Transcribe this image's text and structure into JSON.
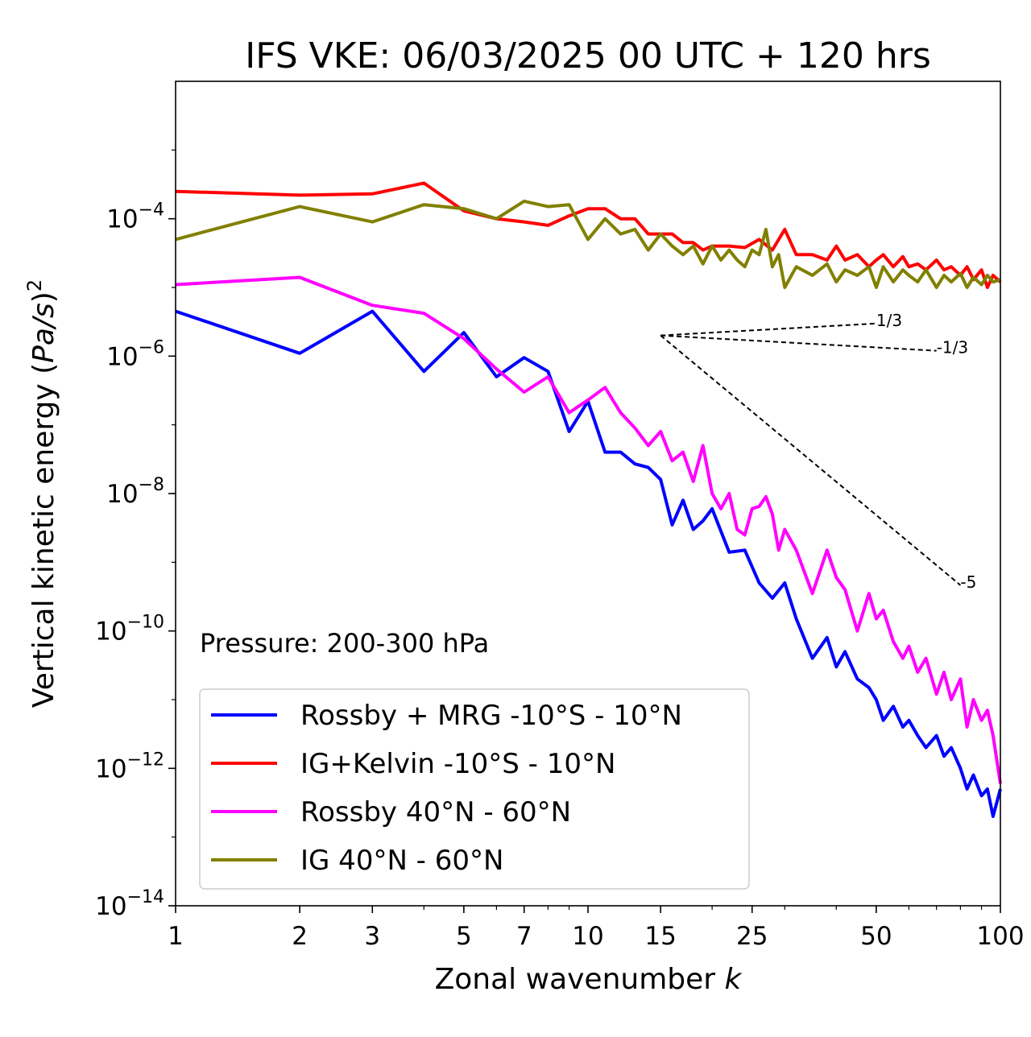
{
  "chart_data": {
    "type": "line",
    "title": "IFS VKE: 06/03/2025 00 UTC + 120 hrs",
    "xlabel": "Zonal wavenumber k",
    "xlabel_text": "Zonal wavenumber",
    "xlabel_var": "k",
    "ylabel": "Vertical kinetic energy (Pa/s)^2",
    "ylabel_text": "Vertical kinetic energy (",
    "ylabel_var": "Pa/s",
    "ylabel_close": ")",
    "ylabel_exp": "2",
    "xscale": "log",
    "yscale": "log",
    "xlim": [
      1,
      100
    ],
    "ylim": [
      1e-14,
      0.01
    ],
    "xticks": [
      1,
      2,
      3,
      5,
      7,
      10,
      15,
      25,
      50,
      100
    ],
    "xtick_labels": [
      "1",
      "2",
      "3",
      "5",
      "7",
      "10",
      "15",
      "25",
      "50",
      "100"
    ],
    "yticks": [
      -14,
      -12,
      -10,
      -8,
      -6,
      -4
    ],
    "ytick_base": "10",
    "ytick_exponents": [
      "−14",
      "−12",
      "−10",
      "−8",
      "−6",
      "−4"
    ],
    "grid": false,
    "legend_position": "lower-left",
    "annotation_text": "Pressure: 200-300 hPa",
    "slope_refs": [
      {
        "label": "1/3",
        "slope": 0.333,
        "x0": 15,
        "x1": 50,
        "y0": 2e-06
      },
      {
        "label": "-1/3",
        "slope": -0.333,
        "x0": 15,
        "x1": 70,
        "y0": 2e-06
      },
      {
        "label": "-5",
        "slope": -5,
        "x0": 15,
        "x1": 80,
        "y0": 2e-06
      }
    ],
    "series": [
      {
        "name": "Rossby + MRG -10°S - 10°N",
        "color": "#0000ff",
        "x": [
          1,
          2,
          3,
          4,
          5,
          6,
          7,
          8,
          9,
          10,
          11,
          12,
          13,
          14,
          15,
          16,
          17,
          18,
          19,
          20,
          22,
          24,
          26,
          28,
          30,
          32,
          35,
          38,
          40,
          42,
          45,
          48,
          50,
          52,
          55,
          58,
          60,
          63,
          66,
          70,
          73,
          76,
          80,
          83,
          86,
          90,
          93,
          96,
          100
        ],
        "y": [
          4.5e-06,
          1.1e-06,
          4.5e-06,
          6e-07,
          2.2e-06,
          5e-07,
          9.5e-07,
          6e-07,
          8e-08,
          2.2e-07,
          4e-08,
          4e-08,
          2.7e-08,
          2.4e-08,
          1.6e-08,
          3.5e-09,
          8e-09,
          3e-09,
          4e-09,
          6e-09,
          1.4e-09,
          1.5e-09,
          5e-10,
          3e-10,
          5e-10,
          1.5e-10,
          4e-11,
          8e-11,
          3e-11,
          5e-11,
          2e-11,
          1.5e-11,
          1e-11,
          5e-12,
          8e-12,
          4e-12,
          5e-12,
          3e-12,
          2e-12,
          3e-12,
          1.5e-12,
          2e-12,
          1e-12,
          5e-13,
          8e-13,
          4e-13,
          5e-13,
          2e-13,
          5e-13
        ]
      },
      {
        "name": "IG+Kelvin -10°S - 10°N",
        "color": "#ff0000",
        "x": [
          1,
          2,
          3,
          4,
          5,
          6,
          7,
          8,
          9,
          10,
          11,
          12,
          13,
          14,
          15,
          16,
          17,
          18,
          19,
          20,
          22,
          24,
          26,
          28,
          30,
          32,
          35,
          38,
          40,
          42,
          45,
          48,
          50,
          52,
          55,
          58,
          60,
          63,
          66,
          70,
          73,
          76,
          80,
          83,
          86,
          90,
          93,
          96,
          100
        ],
        "y": [
          0.00025,
          0.00022,
          0.00023,
          0.00033,
          0.00013,
          0.0001,
          9e-05,
          8e-05,
          0.00011,
          0.00014,
          0.00014,
          0.0001,
          0.0001,
          6e-05,
          6e-05,
          6e-05,
          4.5e-05,
          4.5e-05,
          3.5e-05,
          4e-05,
          4e-05,
          3.8e-05,
          5e-05,
          3.5e-05,
          7e-05,
          3e-05,
          3e-05,
          2.5e-05,
          4e-05,
          2.5e-05,
          3e-05,
          2e-05,
          2.5e-05,
          3e-05,
          2e-05,
          2.8e-05,
          2e-05,
          2.2e-05,
          1.8e-05,
          2.5e-05,
          1.8e-05,
          2e-05,
          1.5e-05,
          2e-05,
          1.3e-05,
          1.8e-05,
          1e-05,
          1.5e-05,
          1.2e-05
        ]
      },
      {
        "name": "Rossby 40°N - 60°N",
        "color": "#ff00ff",
        "x": [
          1,
          2,
          3,
          4,
          5,
          6,
          7,
          8,
          9,
          10,
          11,
          12,
          13,
          14,
          15,
          16,
          17,
          18,
          19,
          20,
          21,
          22,
          23,
          24,
          25,
          26,
          27,
          28,
          29,
          30,
          32,
          35,
          38,
          40,
          42,
          45,
          48,
          50,
          52,
          55,
          58,
          60,
          63,
          66,
          70,
          73,
          76,
          80,
          83,
          86,
          90,
          93,
          96,
          100
        ],
        "y": [
          1.1e-05,
          1.4e-05,
          5.5e-06,
          4.2e-06,
          1.8e-06,
          6.5e-07,
          3e-07,
          5e-07,
          1.5e-07,
          2.3e-07,
          3.5e-07,
          1.5e-07,
          9e-08,
          5e-08,
          8e-08,
          3e-08,
          4e-08,
          1.5e-08,
          5e-08,
          1e-08,
          6e-09,
          1e-08,
          3e-09,
          2.5e-09,
          6e-09,
          6.5e-09,
          9e-09,
          5e-09,
          1.5e-09,
          3e-09,
          1.5e-09,
          3.5e-10,
          1.5e-09,
          6e-10,
          4e-10,
          1e-10,
          3.5e-10,
          1.5e-10,
          2e-10,
          7e-11,
          4e-11,
          6e-11,
          2.5e-11,
          4e-11,
          1.2e-11,
          2.5e-11,
          1e-11,
          2e-11,
          4e-12,
          1e-11,
          5e-12,
          7e-12,
          3e-12,
          6e-13
        ]
      },
      {
        "name": "IG 40°N - 60°N",
        "color": "#808000",
        "x": [
          1,
          2,
          3,
          4,
          5,
          6,
          7,
          8,
          9,
          10,
          11,
          12,
          13,
          14,
          15,
          16,
          17,
          18,
          19,
          20,
          21,
          22,
          23,
          24,
          25,
          26,
          27,
          28,
          29,
          30,
          32,
          35,
          38,
          40,
          42,
          45,
          48,
          50,
          52,
          55,
          58,
          60,
          63,
          66,
          70,
          73,
          76,
          80,
          83,
          86,
          90,
          93,
          96,
          100
        ],
        "y": [
          5e-05,
          0.00015,
          9e-05,
          0.00016,
          0.00014,
          0.0001,
          0.00018,
          0.00015,
          0.00016,
          5e-05,
          0.0001,
          6e-05,
          7e-05,
          3.5e-05,
          6e-05,
          4e-05,
          3e-05,
          4e-05,
          2.2e-05,
          4e-05,
          2.5e-05,
          3.5e-05,
          2.5e-05,
          2e-05,
          3.5e-05,
          3e-05,
          7e-05,
          2e-05,
          3e-05,
          1e-05,
          2e-05,
          1.5e-05,
          2.2e-05,
          1.2e-05,
          1.8e-05,
          1.5e-05,
          2e-05,
          1e-05,
          2e-05,
          1.2e-05,
          1.8e-05,
          1.5e-05,
          1.2e-05,
          1.8e-05,
          1e-05,
          1.5e-05,
          1.2e-05,
          1.6e-05,
          1e-05,
          1.4e-05,
          1.1e-05,
          1.5e-05,
          1.2e-05,
          1.3e-05
        ]
      }
    ]
  }
}
